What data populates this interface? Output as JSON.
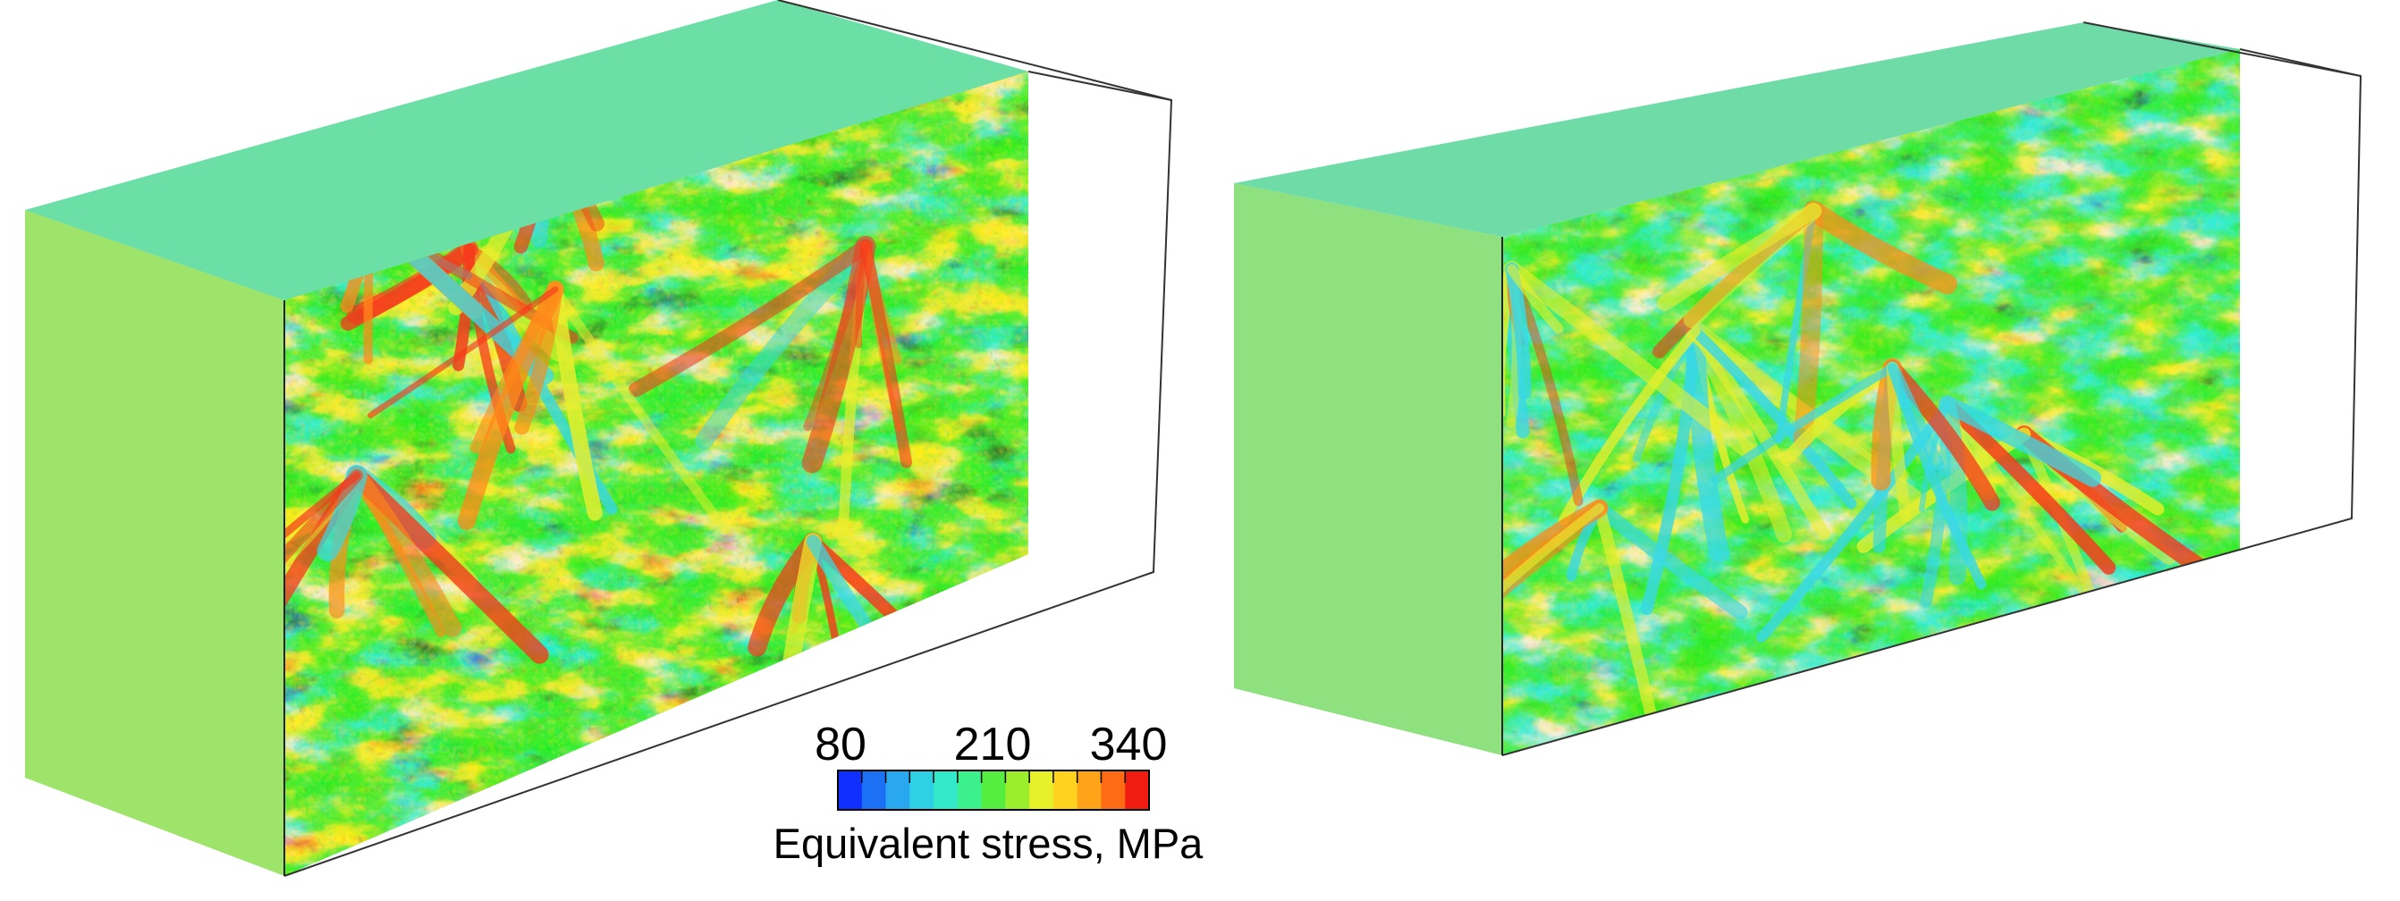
{
  "legend": {
    "ticks": [
      "80",
      "210",
      "340"
    ],
    "title": "Equivalent stress, MPa",
    "colors": [
      "#1030ff",
      "#1c70f4",
      "#29a7ef",
      "#2ed0e6",
      "#33e8c8",
      "#3cf08c",
      "#55ee40",
      "#9aee2c",
      "#e8f02a",
      "#ffd21f",
      "#ffa319",
      "#ff6b14",
      "#f01c12"
    ]
  },
  "panels": [
    {
      "name": "left-stress-block",
      "seed": 11,
      "hot": 0.62
    },
    {
      "name": "right-stress-block",
      "seed": 47,
      "hot": 0.2
    }
  ]
}
